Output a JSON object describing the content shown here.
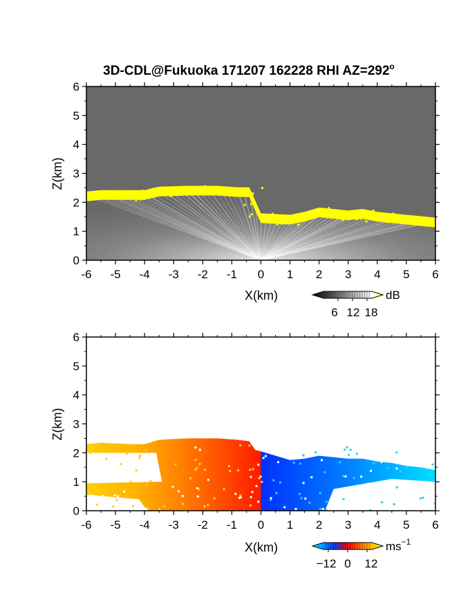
{
  "title": "3D-CDL@Fukuoka 171207 162228 RHI AZ=292",
  "title_superscript": "o",
  "chart_data": [
    {
      "type": "heatmap",
      "panel": "backscatter",
      "xlabel": "X(km)",
      "ylabel": "Z(km)",
      "xlim": [
        -6,
        6
      ],
      "ylim": [
        0,
        6
      ],
      "xticks": [
        "-6",
        "-5",
        "-4",
        "-3",
        "-2",
        "-1",
        "0",
        "1",
        "2",
        "3",
        "4",
        "5",
        "6"
      ],
      "yticks": [
        "0",
        "1",
        "2",
        "3",
        "4",
        "5",
        "6"
      ],
      "colorbar": {
        "unit": "dB",
        "tick_labels": [
          "6",
          "12",
          "18"
        ],
        "ticks": [
          6,
          12,
          18
        ],
        "range": [
          0,
          20
        ],
        "colors": [
          "#000000",
          "#ffffff",
          "#ffff00"
        ]
      },
      "background_color": "#2a2a2a",
      "cloud_layer_color": "#ffff00",
      "cloud_base_x": [
        -6.0,
        -5.5,
        -4.5,
        -4.0,
        -3.5,
        -2.5,
        -1.5,
        -0.8,
        -0.4,
        -0.2,
        0.0,
        1.0,
        1.5,
        2.0,
        2.5,
        3.0,
        3.5,
        4.0,
        4.5,
        5.0,
        5.5,
        6.0
      ],
      "cloud_base_z": [
        2.25,
        2.3,
        2.3,
        2.3,
        2.42,
        2.45,
        2.45,
        2.4,
        2.4,
        1.95,
        1.5,
        1.45,
        1.55,
        1.7,
        1.65,
        1.6,
        1.65,
        1.55,
        1.5,
        1.45,
        1.4,
        1.35
      ]
    },
    {
      "type": "heatmap",
      "panel": "doppler-velocity",
      "xlabel": "X(km)",
      "ylabel": "Z(km)",
      "xlim": [
        -6,
        6
      ],
      "ylim": [
        0,
        6
      ],
      "xticks": [
        "-6",
        "-5",
        "-4",
        "-3",
        "-2",
        "-1",
        "0",
        "1",
        "2",
        "3",
        "4",
        "5",
        "6"
      ],
      "yticks": [
        "0",
        "1",
        "2",
        "3",
        "4",
        "5",
        "6"
      ],
      "colorbar": {
        "unit": "ms",
        "unit_superscript": "−1",
        "tick_labels": [
          "−12",
          "0",
          "12"
        ],
        "ticks": [
          -12,
          0,
          12
        ],
        "range": [
          -15,
          15
        ],
        "colors": [
          "#00e5ff",
          "#0040ff",
          "#ff0000",
          "#ff9900",
          "#ffff00"
        ]
      },
      "echo_top_x": [
        -6.0,
        -5.5,
        -4.5,
        -4.0,
        -3.5,
        -2.5,
        -1.5,
        -0.8,
        -0.4,
        -0.2,
        0.0,
        1.0,
        1.5,
        2.0,
        2.5,
        3.0,
        3.5,
        4.0,
        4.5,
        5.0,
        5.5,
        6.0
      ],
      "echo_top_z": [
        2.3,
        2.35,
        2.3,
        2.3,
        2.45,
        2.5,
        2.5,
        2.45,
        2.4,
        2.1,
        2.05,
        1.75,
        1.8,
        1.9,
        1.85,
        1.8,
        1.8,
        1.7,
        1.65,
        1.55,
        1.5,
        1.4
      ]
    }
  ]
}
